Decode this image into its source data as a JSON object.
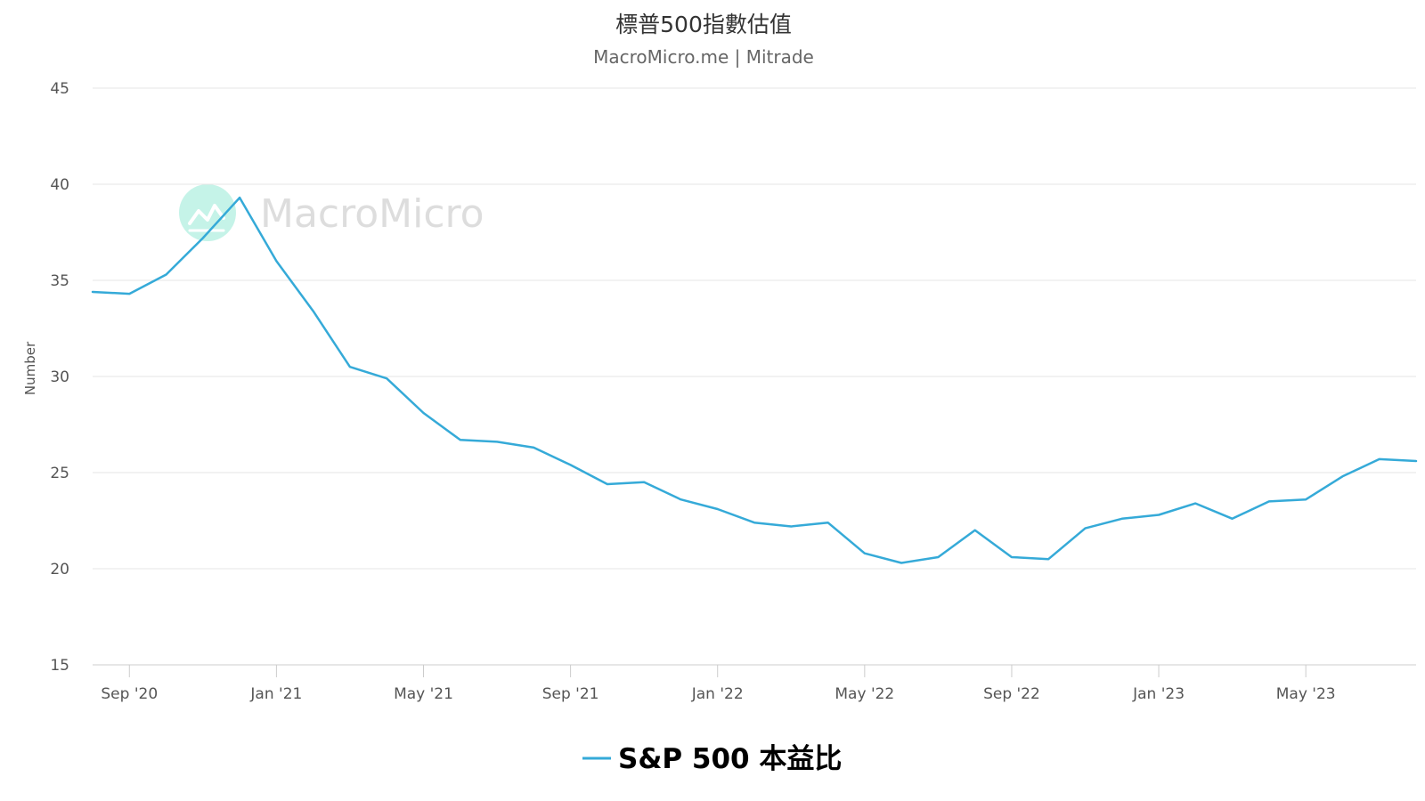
{
  "colors": {
    "series": "#35aad8",
    "watermark_circle": "#a6ecdc"
  },
  "watermark": {
    "text": "MacroMicro",
    "icon": "macromicro-logo-icon"
  },
  "chart_data": {
    "type": "line",
    "title": "標普500指數估值",
    "subtitle": "MacroMicro.me | Mitrade",
    "xlabel": "",
    "ylabel": "Number",
    "ylim": [
      15,
      45
    ],
    "yticks": [
      15,
      20,
      25,
      30,
      35,
      40,
      45
    ],
    "grid": true,
    "legend_position": "bottom-center",
    "xlim": [
      "2020-08",
      "2023-08"
    ],
    "xticks": [
      {
        "label": "Sep '20",
        "date": "2020-09"
      },
      {
        "label": "Jan '21",
        "date": "2021-01"
      },
      {
        "label": "May '21",
        "date": "2021-05"
      },
      {
        "label": "Sep '21",
        "date": "2021-09"
      },
      {
        "label": "Jan '22",
        "date": "2022-01"
      },
      {
        "label": "May '22",
        "date": "2022-05"
      },
      {
        "label": "Sep '22",
        "date": "2022-09"
      },
      {
        "label": "Jan '23",
        "date": "2023-01"
      },
      {
        "label": "May '23",
        "date": "2023-05"
      }
    ],
    "series": [
      {
        "name": "S&P 500 本益比",
        "x": [
          "2020-08",
          "2020-09",
          "2020-10",
          "2020-11",
          "2020-12",
          "2021-01",
          "2021-02",
          "2021-03",
          "2021-04",
          "2021-05",
          "2021-06",
          "2021-07",
          "2021-08",
          "2021-09",
          "2021-10",
          "2021-11",
          "2021-12",
          "2022-01",
          "2022-02",
          "2022-03",
          "2022-04",
          "2022-05",
          "2022-06",
          "2022-07",
          "2022-08",
          "2022-09",
          "2022-10",
          "2022-11",
          "2022-12",
          "2023-01",
          "2023-02",
          "2023-03",
          "2023-04",
          "2023-05",
          "2023-06",
          "2023-07",
          "2023-08"
        ],
        "values": [
          34.4,
          34.3,
          35.3,
          37.2,
          39.3,
          36.0,
          33.4,
          30.5,
          29.9,
          28.1,
          26.7,
          26.6,
          26.3,
          25.4,
          24.4,
          24.5,
          23.6,
          23.1,
          22.4,
          22.2,
          22.4,
          20.8,
          20.3,
          20.6,
          22.0,
          20.6,
          20.5,
          22.1,
          22.6,
          22.8,
          23.4,
          22.6,
          23.5,
          23.6,
          24.8,
          25.7,
          25.6
        ]
      }
    ]
  }
}
